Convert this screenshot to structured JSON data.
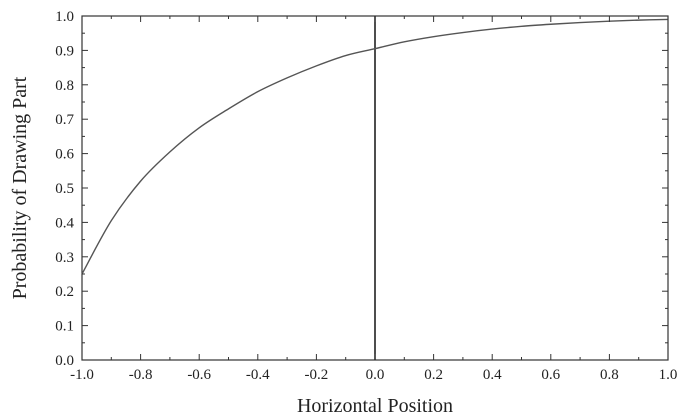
{
  "chart_data": {
    "type": "line",
    "title": "",
    "xlabel": "Horizontal Position",
    "ylabel": "Probability of Drawing Part",
    "xlim": [
      -1.0,
      1.0
    ],
    "ylim": [
      0.0,
      1.0
    ],
    "grid": false,
    "x_tick_labels": [
      "-1.0",
      "-0.8",
      "-0.6",
      "-0.4",
      "-0.2",
      "0.0",
      "0.2",
      "0.4",
      "0.6",
      "0.8",
      "1.0"
    ],
    "y_tick_labels": [
      "0.0",
      "0.1",
      "0.2",
      "0.3",
      "0.4",
      "0.5",
      "0.6",
      "0.7",
      "0.8",
      "0.9",
      "1.0"
    ],
    "reference_line": {
      "orientation": "vertical",
      "x": 0.0
    },
    "series": [
      {
        "color": "#555555",
        "x": [
          -1.0,
          -0.9,
          -0.8,
          -0.7,
          -0.6,
          -0.5,
          -0.4,
          -0.3,
          -0.2,
          -0.1,
          0.0,
          0.1,
          0.2,
          0.3,
          0.4,
          0.5,
          0.6,
          0.7,
          0.8,
          0.9,
          1.0
        ],
        "y": [
          0.25,
          0.405,
          0.52,
          0.605,
          0.675,
          0.73,
          0.78,
          0.82,
          0.855,
          0.885,
          0.905,
          0.925,
          0.94,
          0.952,
          0.962,
          0.97,
          0.976,
          0.981,
          0.985,
          0.988,
          0.99
        ]
      }
    ]
  }
}
